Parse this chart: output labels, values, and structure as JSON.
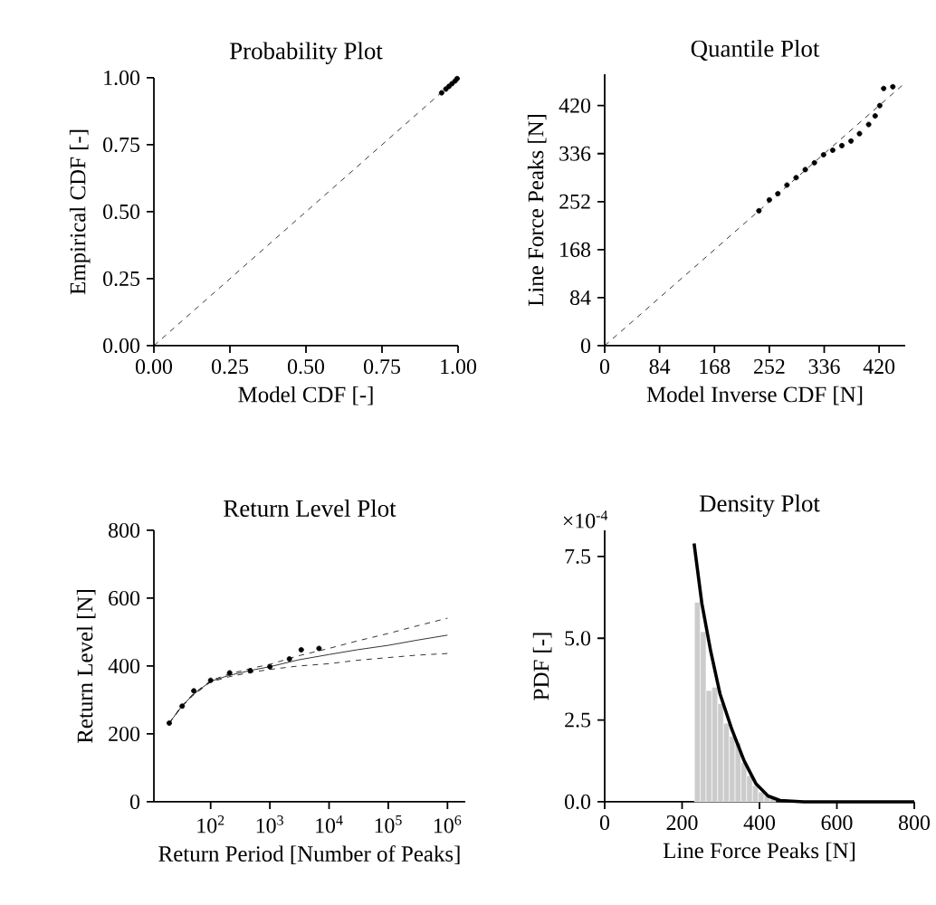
{
  "chart_data": [
    {
      "type": "scatter",
      "title": "Probability Plot",
      "xlabel": "Model CDF [-]",
      "ylabel": "Empirical CDF [-]",
      "xlim": [
        0,
        1
      ],
      "ylim": [
        0,
        1
      ],
      "xticks": [
        {
          "value": 0,
          "label": "0.00"
        },
        {
          "value": 0.25,
          "label": "0.25"
        },
        {
          "value": 0.5,
          "label": "0.50"
        },
        {
          "value": 0.75,
          "label": "0.75"
        },
        {
          "value": 1,
          "label": "1.00"
        }
      ],
      "yticks": [
        {
          "value": 0,
          "label": "0.00"
        },
        {
          "value": 0.25,
          "label": "0.25"
        },
        {
          "value": 0.5,
          "label": "0.50"
        },
        {
          "value": 0.75,
          "label": "0.75"
        },
        {
          "value": 1,
          "label": "1.00"
        }
      ],
      "series": [
        {
          "type": "line",
          "color": "#000000",
          "line_style": "dashed",
          "marker": "none",
          "x": [
            0,
            1
          ],
          "values": [
            0,
            1
          ]
        },
        {
          "type": "scatter",
          "color": "#000000",
          "marker": "circle",
          "x": [
            0.946,
            0.96,
            0.97,
            0.98,
            0.99,
            0.997
          ],
          "values": [
            0.944,
            0.958,
            0.968,
            0.978,
            0.988,
            0.997
          ]
        }
      ]
    },
    {
      "type": "scatter",
      "title": "Quantile Plot",
      "xlabel": "Model Inverse CDF [N]",
      "ylabel": "Line Force Peaks [N]",
      "xlim": [
        0,
        460
      ],
      "ylim": [
        0,
        475
      ],
      "xticks": [
        0,
        84,
        168,
        252,
        336,
        420
      ],
      "yticks": [
        0,
        84,
        168,
        252,
        336,
        420
      ],
      "series": [
        {
          "type": "line",
          "color": "#000000",
          "line_style": "dashed",
          "marker": "none",
          "x": [
            0,
            455
          ],
          "values": [
            0,
            455
          ]
        },
        {
          "type": "scatter",
          "color": "#000000",
          "marker": "circle",
          "x": [
            236,
            252,
            265,
            279,
            293,
            307,
            321,
            335,
            349,
            363,
            377,
            390,
            404,
            414,
            421,
            427,
            441
          ],
          "values": [
            236,
            255,
            266,
            281,
            294,
            308,
            320,
            334,
            342,
            350,
            358,
            371,
            387,
            402,
            420,
            450,
            453
          ]
        }
      ]
    },
    {
      "type": "scatter",
      "title": "Return Level Plot",
      "xlabel": "Return Period [Number of Peaks]",
      "ylabel": "Return Level [N]",
      "log": "x",
      "xlim": [
        11,
        2000000
      ],
      "ylim": [
        0,
        800
      ],
      "xticks": [
        {
          "value": 100,
          "label": "10$^{2}$"
        },
        {
          "value": 1000,
          "label": "10$^{3}$"
        },
        {
          "value": 10000,
          "label": "10$^{4}$"
        },
        {
          "value": 100000,
          "label": "10$^{5}$"
        },
        {
          "value": 1000000,
          "label": "10$^{6}$"
        }
      ],
      "yticks": [
        0,
        200,
        400,
        600,
        800
      ],
      "series": [
        {
          "type": "line",
          "color": "#000000",
          "line_style": "solid",
          "marker": "none",
          "x": [
            20,
            32,
            50,
            100,
            200,
            500,
            1000,
            3000,
            10000,
            30000,
            100000,
            300000,
            1000000
          ],
          "values": [
            232,
            280,
            315,
            355,
            372,
            388,
            398,
            418,
            434,
            448,
            461,
            476,
            491
          ]
        },
        {
          "type": "line",
          "color": "#000000",
          "line_style": "dashed",
          "marker": "none",
          "x": [
            20,
            32,
            50,
            100,
            200,
            500,
            1000,
            3000,
            10000,
            30000,
            100000,
            300000,
            1000000
          ],
          "values": [
            232,
            281,
            317,
            357,
            376,
            394,
            405,
            430,
            452,
            474,
            496,
            518,
            541
          ]
        },
        {
          "type": "line",
          "color": "#000000",
          "line_style": "dashed",
          "marker": "none",
          "x": [
            20,
            32,
            50,
            100,
            200,
            500,
            1000,
            3000,
            10000,
            30000,
            100000,
            300000,
            1000000
          ],
          "values": [
            232,
            279,
            313,
            353,
            368,
            382,
            390,
            400,
            407,
            417,
            425,
            432,
            437
          ]
        },
        {
          "type": "scatter",
          "color": "#000000",
          "marker": "circle",
          "x": [
            20,
            33,
            52,
            100,
            209,
            468,
            1000,
            2140,
            3390,
            6760
          ],
          "values": [
            232,
            282,
            327,
            358,
            380,
            386,
            398,
            421,
            448,
            452
          ]
        }
      ]
    },
    {
      "type": "histogram",
      "title": "Density Plot",
      "xlabel": "Line Force Peaks [N]",
      "ylabel": "PDF [-]",
      "annotations": [
        "×10$^{-4}$"
      ],
      "xlim": [
        0,
        800
      ],
      "ylim": [
        0,
        8.3
      ],
      "xticks": [
        0,
        200,
        400,
        600,
        800
      ],
      "yticks": [
        {
          "value": 0,
          "label": "0.0"
        },
        2.5,
        {
          "value": 5,
          "label": "5.0"
        },
        7.5
      ],
      "bins": [
        232,
        247,
        262,
        277,
        292,
        307,
        322,
        337,
        352,
        367,
        382,
        397,
        412,
        427,
        442,
        457
      ],
      "values": [
        6.1,
        5.2,
        3.4,
        3.5,
        3.0,
        2.4,
        2.0,
        1.8,
        1.2,
        0.8,
        0.5,
        0.3,
        0.2,
        0.1,
        null
      ],
      "color": "#cccccc",
      "series": [
        {
          "type": "line",
          "color": "#000000",
          "line_style": "solid",
          "marker": "none",
          "x": [
            231,
            251,
            274,
            298,
            329,
            360,
            391,
            422,
            453,
            515,
            800
          ],
          "values": [
            7.9,
            6.07,
            4.6,
            3.3,
            2.2,
            1.26,
            0.55,
            0.18,
            0.04,
            0,
            0
          ]
        }
      ]
    }
  ]
}
